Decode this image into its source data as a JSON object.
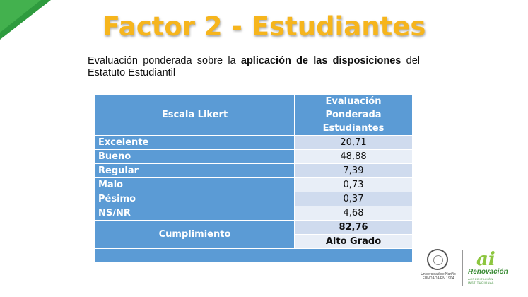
{
  "title": "Factor 2 - Estudiantes",
  "description": {
    "part1": "Evaluación ponderada sobre la ",
    "bold": "aplicación de las disposiciones",
    "part2": " del Estatuto Estudiantil"
  },
  "table": {
    "header_scale": "Escala Likert",
    "header_eval_line1": "Evaluación Ponderada",
    "header_eval_line2": "Estudiantes",
    "rows": [
      {
        "label": "Excelente",
        "value": "20,71"
      },
      {
        "label": "Bueno",
        "value": "48,88"
      },
      {
        "label": "Regular",
        "value": "7,39"
      },
      {
        "label": "Malo",
        "value": "0,73"
      },
      {
        "label": "Pésimo",
        "value": "0,37"
      },
      {
        "label": "NS/NR",
        "value": "4,68"
      }
    ],
    "cumplimiento_label": "Cumplimiento",
    "cumplimiento_value": "82,76",
    "cumplimiento_grade": "Alto Grado"
  },
  "logos": {
    "university": "Universidad de Nariño",
    "university_sub": "FUNDADA EN 1904",
    "renov_logo": "ai",
    "renov_name": "Renovación",
    "renov_sub": "ACREDITACIÓN INSTITUCIONAL"
  },
  "colors": {
    "title": "#f6b51d",
    "table_header": "#5b9bd5",
    "row_odd": "#cfdbee",
    "row_even": "#e8eef7",
    "corner": "#43b14e"
  }
}
